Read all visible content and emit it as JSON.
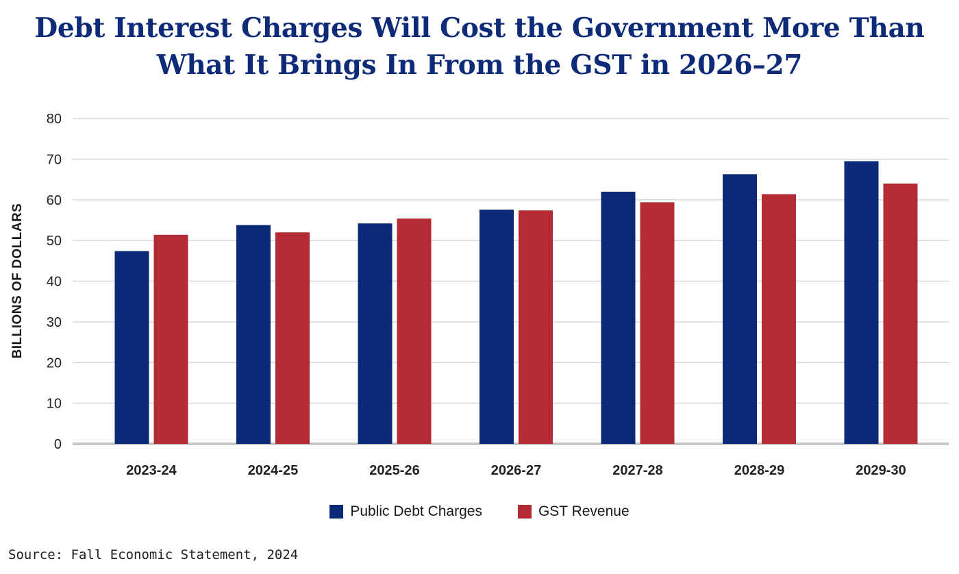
{
  "title_line1": "Debt Interest Charges Will Cost the Government More Than",
  "title_line2": "What It Brings In From the GST in 2026–27",
  "source": "Source: Fall Economic Statement, 2024",
  "colors": {
    "series1": "#0a2a78",
    "series2": "#b52b33",
    "grid": "#d9d9d9",
    "baseline": "#c8c8c8"
  },
  "chart_data": {
    "type": "bar",
    "categories": [
      "2023-24",
      "2024-25",
      "2025-26",
      "2026-27",
      "2027-28",
      "2028-29",
      "2029-30"
    ],
    "series": [
      {
        "name": "Public Debt Charges",
        "values": [
          47.4,
          53.8,
          54.2,
          57.6,
          62.0,
          66.3,
          69.5
        ]
      },
      {
        "name": "GST Revenue",
        "values": [
          51.4,
          52.0,
          55.4,
          57.4,
          59.4,
          61.4,
          64.0
        ]
      }
    ],
    "ylabel": "BILLIONS OF DOLLARS",
    "ylim": [
      0,
      80
    ],
    "yticks": [
      0,
      10,
      20,
      30,
      40,
      50,
      60,
      70,
      80
    ],
    "grid": true,
    "legend": "bottom"
  }
}
